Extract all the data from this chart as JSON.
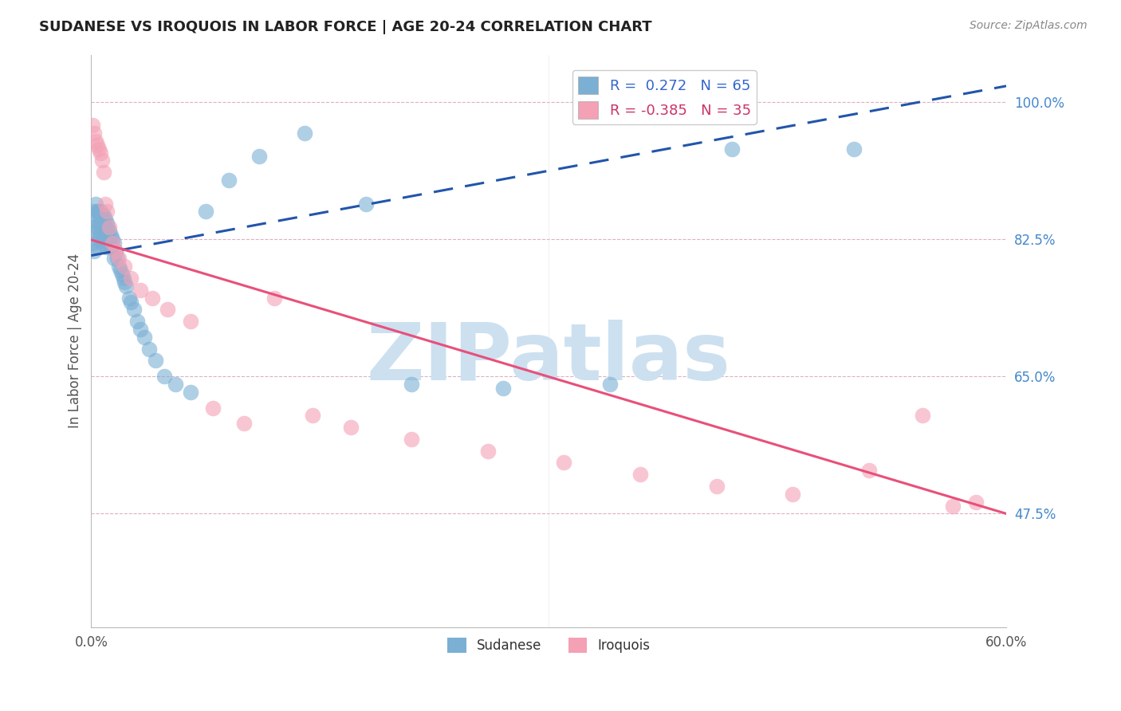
{
  "title": "SUDANESE VS IROQUOIS IN LABOR FORCE | AGE 20-24 CORRELATION CHART",
  "source": "Source: ZipAtlas.com",
  "ylabel": "In Labor Force | Age 20-24",
  "xlim": [
    0.0,
    0.6
  ],
  "ylim": [
    0.33,
    1.06
  ],
  "yticks_right": [
    1.0,
    0.825,
    0.65,
    0.475
  ],
  "ytick_labels_right": [
    "100.0%",
    "82.5%",
    "65.0%",
    "47.5%"
  ],
  "legend_r_sudanese": "0.272",
  "legend_n_sudanese": "65",
  "legend_r_iroquois": "-0.385",
  "legend_n_iroquois": "35",
  "sudanese_color": "#7bafd4",
  "iroquois_color": "#f4a0b5",
  "sudanese_line_color": "#2255aa",
  "iroquois_line_color": "#e8507a",
  "watermark_text": "ZIPatlas",
  "watermark_color": "#cce0f0",
  "sudanese_line_x0": 0.0,
  "sudanese_line_y0": 0.804,
  "sudanese_line_x1": 0.6,
  "sudanese_line_y1": 1.02,
  "iroquois_line_x0": 0.0,
  "iroquois_line_y0": 0.824,
  "iroquois_line_x1": 0.6,
  "iroquois_line_y1": 0.475,
  "sudanese_x": [
    0.001,
    0.001,
    0.002,
    0.002,
    0.003,
    0.003,
    0.003,
    0.004,
    0.004,
    0.004,
    0.005,
    0.005,
    0.005,
    0.006,
    0.006,
    0.006,
    0.007,
    0.007,
    0.007,
    0.008,
    0.008,
    0.008,
    0.009,
    0.009,
    0.01,
    0.01,
    0.01,
    0.011,
    0.011,
    0.012,
    0.012,
    0.013,
    0.013,
    0.014,
    0.015,
    0.015,
    0.016,
    0.017,
    0.018,
    0.019,
    0.02,
    0.021,
    0.022,
    0.023,
    0.025,
    0.026,
    0.028,
    0.03,
    0.032,
    0.035,
    0.038,
    0.042,
    0.048,
    0.055,
    0.065,
    0.075,
    0.09,
    0.11,
    0.14,
    0.18,
    0.21,
    0.27,
    0.34,
    0.42,
    0.5
  ],
  "sudanese_y": [
    0.84,
    0.82,
    0.86,
    0.81,
    0.87,
    0.855,
    0.835,
    0.86,
    0.84,
    0.815,
    0.86,
    0.845,
    0.825,
    0.86,
    0.85,
    0.83,
    0.855,
    0.84,
    0.82,
    0.855,
    0.845,
    0.825,
    0.85,
    0.835,
    0.845,
    0.83,
    0.815,
    0.84,
    0.82,
    0.835,
    0.82,
    0.83,
    0.815,
    0.825,
    0.82,
    0.8,
    0.81,
    0.8,
    0.79,
    0.785,
    0.78,
    0.775,
    0.77,
    0.765,
    0.75,
    0.745,
    0.735,
    0.72,
    0.71,
    0.7,
    0.685,
    0.67,
    0.65,
    0.64,
    0.63,
    0.86,
    0.9,
    0.93,
    0.96,
    0.87,
    0.64,
    0.635,
    0.64,
    0.94,
    0.94
  ],
  "iroquois_x": [
    0.001,
    0.002,
    0.003,
    0.004,
    0.005,
    0.006,
    0.007,
    0.008,
    0.009,
    0.01,
    0.012,
    0.014,
    0.016,
    0.018,
    0.022,
    0.026,
    0.032,
    0.04,
    0.05,
    0.065,
    0.08,
    0.1,
    0.12,
    0.145,
    0.17,
    0.21,
    0.26,
    0.31,
    0.36,
    0.41,
    0.46,
    0.51,
    0.545,
    0.565,
    0.58
  ],
  "iroquois_y": [
    0.97,
    0.96,
    0.95,
    0.945,
    0.94,
    0.935,
    0.925,
    0.91,
    0.87,
    0.86,
    0.84,
    0.82,
    0.81,
    0.8,
    0.79,
    0.775,
    0.76,
    0.75,
    0.735,
    0.72,
    0.61,
    0.59,
    0.75,
    0.6,
    0.585,
    0.57,
    0.555,
    0.54,
    0.525,
    0.51,
    0.5,
    0.53,
    0.6,
    0.485,
    0.49
  ]
}
